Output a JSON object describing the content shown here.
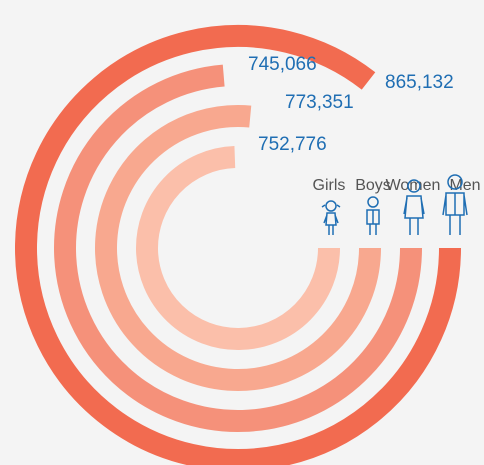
{
  "chart_data": {
    "type": "radial-bar",
    "categories": [
      "Men",
      "Women",
      "Boys",
      "Girls"
    ],
    "values": [
      865132,
      745066,
      773351,
      752776
    ],
    "value_labels": [
      "865,132",
      "745,066",
      "773,351",
      "752,776"
    ],
    "colors": [
      "#f26b50",
      "#f5917a",
      "#f8a88f",
      "#fbbfaa"
    ]
  }
}
